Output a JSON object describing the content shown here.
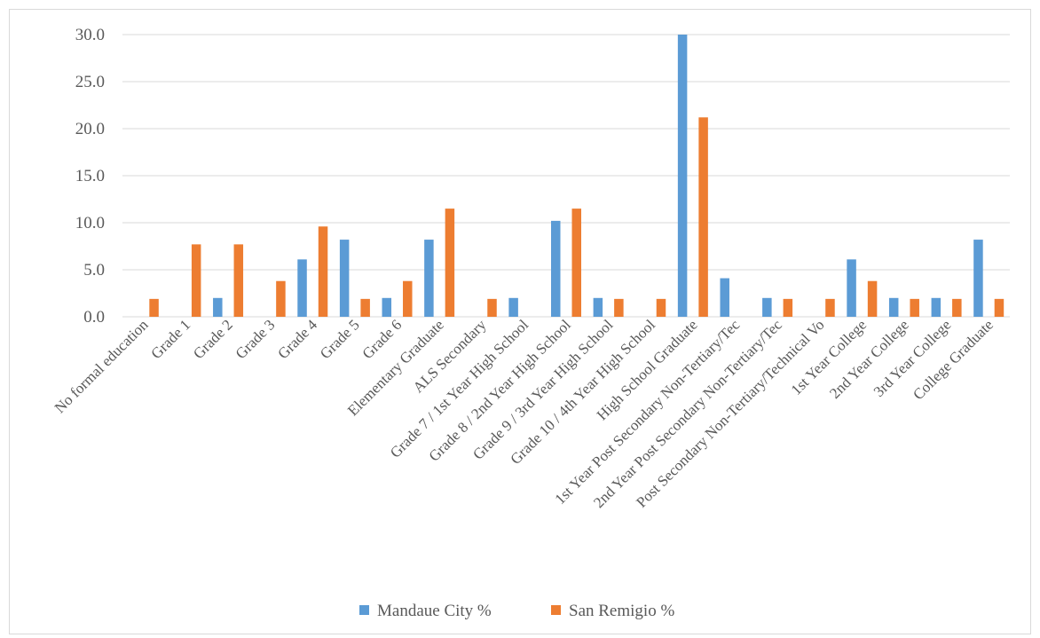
{
  "chart_data": {
    "type": "bar",
    "title": "",
    "xlabel": "",
    "ylabel": "",
    "ylim": [
      0,
      30
    ],
    "yticks": [
      0,
      5,
      10,
      15,
      20,
      25,
      30
    ],
    "ytick_labels": [
      "0.0",
      "5.0",
      "10.0",
      "15.0",
      "20.0",
      "25.0",
      "30.0"
    ],
    "grid": "horizontal",
    "legend_position": "bottom",
    "categories": [
      "No formal education",
      "Grade 1",
      "Grade 2",
      "Grade 3",
      "Grade 4",
      "Grade 5",
      "Grade 6",
      "Elementary Graduate",
      "ALS Secondary",
      "Grade 7 / 1st Year High School",
      "Grade 8 / 2nd Year High School",
      "Grade 9 / 3rd Year High School",
      "Grade 10 / 4th Year High School",
      "High School Graduate",
      "1st Year Post Secondary Non-Tertiary/Tec",
      "2nd Year Post Secondary Non-Tertiary/Tec",
      "Post Secondary Non-Tertiary/Technical Vo",
      "1st Year College",
      "2nd Year College",
      "3rd Year College",
      "College Graduate"
    ],
    "series": [
      {
        "name": "Mandaue City %",
        "color": "#5b9bd5",
        "values": [
          0,
          0,
          2.0,
          0,
          6.1,
          8.2,
          2.0,
          8.2,
          0,
          2.0,
          10.2,
          2.0,
          0,
          30.6,
          4.1,
          2.0,
          0,
          6.1,
          2.0,
          2.0,
          8.2
        ]
      },
      {
        "name": "San Remigio %",
        "color": "#ed7d31",
        "values": [
          1.9,
          7.7,
          7.7,
          3.8,
          9.6,
          1.9,
          3.8,
          11.5,
          1.9,
          0,
          11.5,
          1.9,
          1.9,
          21.2,
          0,
          1.9,
          1.9,
          3.8,
          1.9,
          1.9,
          1.9
        ]
      }
    ]
  }
}
